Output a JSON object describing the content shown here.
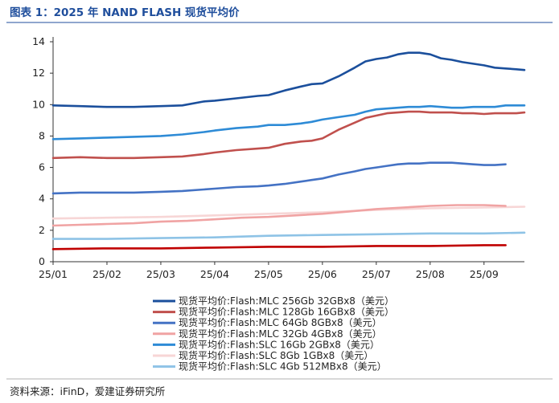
{
  "chart_data": {
    "type": "line",
    "title": "图表 1：2025 年 NAND FLASH 现货平均价",
    "source": "资料来源：iFinD，爱建证券研究所",
    "xlabel": "",
    "ylabel": "",
    "ylim": [
      0,
      14
    ],
    "yticks": [
      "0",
      "2",
      "4",
      "6",
      "8",
      "10",
      "12",
      "14"
    ],
    "xlim": [
      0,
      8.75
    ],
    "xticks": [
      "25/01",
      "25/02",
      "25/03",
      "25/04",
      "25/05",
      "25/06",
      "25/07",
      "25/08",
      "25/09"
    ],
    "grid": false,
    "series": [
      {
        "name": "现货平均价:Flash:MLC 256Gb 32GBx8（美元）",
        "color": "#1b4f9c",
        "x": [
          0,
          0.5,
          1,
          1.5,
          2,
          2.4,
          2.8,
          3,
          3.4,
          3.8,
          4,
          4.3,
          4.6,
          4.8,
          5,
          5.3,
          5.6,
          5.8,
          6,
          6.2,
          6.4,
          6.6,
          6.8,
          7,
          7.2,
          7.4,
          7.6,
          7.8,
          8,
          8.2,
          8.4,
          8.6,
          8.75
        ],
        "values": [
          9.95,
          9.9,
          9.85,
          9.85,
          9.9,
          9.95,
          10.2,
          10.25,
          10.4,
          10.55,
          10.6,
          10.9,
          11.15,
          11.3,
          11.35,
          11.8,
          12.35,
          12.75,
          12.9,
          13.0,
          13.2,
          13.3,
          13.3,
          13.2,
          12.95,
          12.85,
          12.7,
          12.6,
          12.5,
          12.35,
          12.3,
          12.25,
          12.2
        ]
      },
      {
        "name": "现货平均价:Flash:MLC 128Gb 16GBx8（美元）",
        "color": "#c0504d",
        "x": [
          0,
          0.5,
          1,
          1.5,
          2,
          2.4,
          2.8,
          3,
          3.4,
          3.8,
          4,
          4.3,
          4.6,
          4.8,
          5,
          5.3,
          5.6,
          5.8,
          6,
          6.2,
          6.4,
          6.6,
          6.8,
          7,
          7.2,
          7.4,
          7.6,
          7.8,
          8,
          8.2,
          8.4,
          8.6,
          8.75
        ],
        "values": [
          6.6,
          6.65,
          6.6,
          6.6,
          6.65,
          6.7,
          6.85,
          6.95,
          7.1,
          7.2,
          7.25,
          7.5,
          7.65,
          7.7,
          7.85,
          8.4,
          8.85,
          9.15,
          9.3,
          9.45,
          9.5,
          9.55,
          9.55,
          9.5,
          9.5,
          9.5,
          9.45,
          9.45,
          9.4,
          9.45,
          9.45,
          9.45,
          9.5
        ]
      },
      {
        "name": "现货平均价:Flash:MLC 64Gb 8GBx8（美元）",
        "color": "#4472c4",
        "x": [
          0,
          0.5,
          1,
          1.5,
          2,
          2.4,
          2.8,
          3,
          3.4,
          3.8,
          4,
          4.3,
          4.6,
          4.8,
          5,
          5.3,
          5.6,
          5.8,
          6,
          6.2,
          6.4,
          6.6,
          6.8,
          7,
          7.2,
          7.4,
          7.6,
          7.8,
          8,
          8.2,
          8.4
        ],
        "values": [
          4.35,
          4.4,
          4.4,
          4.4,
          4.45,
          4.5,
          4.6,
          4.65,
          4.75,
          4.8,
          4.85,
          4.95,
          5.1,
          5.2,
          5.3,
          5.55,
          5.75,
          5.9,
          6.0,
          6.1,
          6.2,
          6.25,
          6.25,
          6.3,
          6.3,
          6.3,
          6.25,
          6.2,
          6.15,
          6.15,
          6.2
        ]
      },
      {
        "name": "现货平均价:Flash:MLC 32Gb 4GBx8（美元）",
        "color": "#f0a3a3",
        "x": [
          0,
          0.5,
          1,
          1.5,
          2,
          2.5,
          3,
          3.5,
          4,
          4.5,
          5,
          5.5,
          6,
          6.5,
          7,
          7.5,
          8,
          8.4
        ],
        "values": [
          2.3,
          2.35,
          2.4,
          2.45,
          2.55,
          2.6,
          2.7,
          2.8,
          2.85,
          2.95,
          3.05,
          3.2,
          3.35,
          3.45,
          3.55,
          3.6,
          3.6,
          3.55
        ]
      },
      {
        "name": "现货平均价:Flash:SLC 16Gb 2GBx8（美元）",
        "color": "#2e8bd6",
        "x": [
          0,
          0.5,
          1,
          1.5,
          2,
          2.4,
          2.8,
          3,
          3.4,
          3.8,
          4,
          4.3,
          4.6,
          4.8,
          5,
          5.3,
          5.6,
          5.8,
          6,
          6.2,
          6.4,
          6.6,
          6.8,
          7,
          7.2,
          7.4,
          7.6,
          7.8,
          8,
          8.2,
          8.4,
          8.6,
          8.75
        ],
        "values": [
          7.8,
          7.85,
          7.9,
          7.95,
          8.0,
          8.1,
          8.25,
          8.35,
          8.5,
          8.6,
          8.7,
          8.7,
          8.8,
          8.9,
          9.05,
          9.2,
          9.35,
          9.55,
          9.7,
          9.75,
          9.8,
          9.85,
          9.85,
          9.9,
          9.85,
          9.8,
          9.8,
          9.85,
          9.85,
          9.85,
          9.95,
          9.95,
          9.95
        ]
      },
      {
        "name": "现货平均价:Flash:SLC 8Gb 1GBx8（美元）",
        "color": "#f7d6d6",
        "x": [
          0,
          1,
          2,
          3,
          4,
          5,
          6,
          7,
          8,
          8.75
        ],
        "values": [
          2.75,
          2.8,
          2.85,
          2.95,
          3.05,
          3.15,
          3.3,
          3.4,
          3.45,
          3.5
        ]
      },
      {
        "name": "现货平均价:Flash:SLC 4Gb 512MBx8（美元）",
        "color": "#8ec3e6",
        "x": [
          0,
          1,
          2,
          3,
          4,
          5,
          6,
          7,
          8,
          8.75
        ],
        "values": [
          1.45,
          1.45,
          1.5,
          1.55,
          1.65,
          1.7,
          1.75,
          1.8,
          1.8,
          1.85
        ]
      },
      {
        "name": "",
        "color": "#c00000",
        "x": [
          0,
          1,
          2,
          3,
          4,
          5,
          6,
          7,
          8,
          8.4
        ],
        "values": [
          0.8,
          0.85,
          0.85,
          0.9,
          0.95,
          0.95,
          1.0,
          1.0,
          1.05,
          1.05
        ]
      }
    ]
  }
}
